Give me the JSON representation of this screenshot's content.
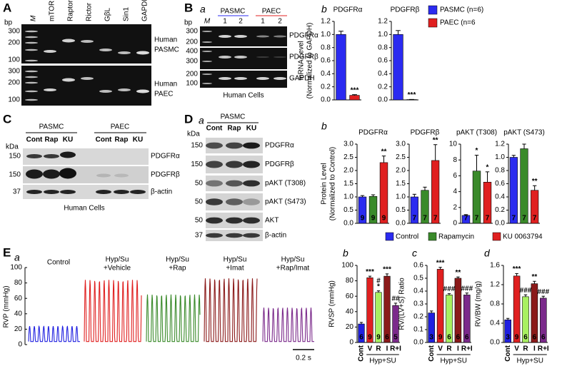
{
  "panels": {
    "A": "A",
    "B": "B",
    "Ba": "a",
    "Bb": "b",
    "C": "C",
    "D": "D",
    "Da": "a",
    "Db": "b",
    "E": "E",
    "Ea": "a",
    "Eb": "b",
    "Ec": "c",
    "Ed": "d"
  },
  "gel_A": {
    "bp": "bp",
    "lanes": [
      "M",
      "mTOR",
      "Raptor",
      "Rictor",
      "GβL",
      "Sin1",
      "GAPDH"
    ],
    "markers_top": [
      300,
      200,
      100
    ],
    "markers_bottom": [
      300,
      200,
      100
    ],
    "rows": [
      [
        "Human",
        "PASMC"
      ],
      [
        "Human",
        "PAEC"
      ]
    ]
  },
  "gel_B": {
    "bp": "bp",
    "ladder": "M",
    "groups": [
      "PASMC",
      "PAEC"
    ],
    "lanes": [
      1,
      2,
      1,
      2
    ],
    "strips": [
      "PDGFRα",
      "PDGFRβ",
      "GAPDH"
    ],
    "markers": [
      [
        300,
        200
      ],
      [
        400,
        300
      ],
      [
        200,
        100
      ]
    ],
    "footer": "Human Cells"
  },
  "blot_C": {
    "kda": "kDa",
    "groups": [
      "PASMC",
      "PAEC"
    ],
    "lanes": [
      [
        "Cont",
        "Rap",
        "KU"
      ],
      [
        "Cont",
        "Rap",
        "KU"
      ]
    ],
    "strips": [
      "PDGFRα",
      "PDGFRβ",
      "β-actin"
    ],
    "markers": [
      150,
      150,
      37
    ],
    "footer": "Human Cells"
  },
  "blot_D": {
    "kda": "kDa",
    "group": "PASMC",
    "lanes": [
      "Cont",
      "Rap",
      "KU"
    ],
    "strips": [
      "PDGFRα",
      "PDGFRβ",
      "pAKT (T308)",
      "pAKT (S473)",
      "AKT",
      "β-actin"
    ],
    "markers": [
      150,
      150,
      50,
      50,
      50,
      37
    ]
  },
  "lane_colors": [
    "#2b2bf0",
    "#3a8a2a",
    "#e02020"
  ],
  "legends": [
    {
      "names": [
        "PASMC (n=6)",
        "PAEC (n=6"
      ],
      "colors": [
        "#2b2bf0",
        "#e02020"
      ]
    },
    {
      "names": [
        "Control",
        "Rapamycin",
        "KU 0063794"
      ],
      "colors": [
        "#2b2bf0",
        "#3a8a2a",
        "#e02020"
      ]
    }
  ],
  "traces": {
    "ylabel": "RVP (mmHg)",
    "ylim": [
      0,
      100
    ],
    "yticks": [
      0,
      20,
      40,
      60,
      80,
      100
    ],
    "labels": [
      [
        "Control"
      ],
      [
        "Hyp/Su",
        "+Vehicle"
      ],
      [
        "Hyp/Su",
        "+Rap"
      ],
      [
        "Hyp/Su",
        "+Imat"
      ],
      [
        "Hyp/Su",
        "+Rap/Imat"
      ]
    ],
    "colors": [
      "#2020e0",
      "#e02020",
      "#3a8a2a",
      "#8b1a1a",
      "#7b2a8b"
    ],
    "scale": "0.2 s"
  },
  "chart_data": [
    {
      "type": "bar",
      "title": "PDGFRα",
      "ylabel": [
        "mRNA Level",
        "(Normalized to GAPDH)"
      ],
      "values": [
        1.0,
        0.07
      ],
      "errors": [
        0.05,
        0.01
      ],
      "colors": [
        "#2b2bf0",
        "#e02020"
      ],
      "significance": [
        null,
        "***"
      ],
      "ylim": [
        0,
        1.2
      ],
      "yticks": [
        {
          "value": 0,
          "label": "0.0"
        },
        {
          "value": 0.2,
          "label": "0.2"
        },
        {
          "value": 0.4,
          "label": "0.4"
        },
        {
          "value": 0.6,
          "label": "0.6"
        },
        {
          "value": 0.8,
          "label": "0.8"
        },
        {
          "value": 1,
          "label": "1.0"
        },
        {
          "value": 1.2,
          "label": "1.2"
        }
      ]
    },
    {
      "type": "bar",
      "title": "PDGFRβ",
      "values": [
        1.0,
        0.005
      ],
      "errors": [
        0.06,
        0.002
      ],
      "colors": [
        "#2b2bf0",
        "#e02020"
      ],
      "significance": [
        null,
        "***"
      ],
      "ylim": [
        0,
        1.2
      ],
      "yticks": [
        {
          "value": 0,
          "label": "0.0"
        },
        {
          "value": 0.2,
          "label": "0.2"
        },
        {
          "value": 0.4,
          "label": "0.4"
        },
        {
          "value": 0.6,
          "label": "0.6"
        },
        {
          "value": 0.8,
          "label": "0.8"
        },
        {
          "value": 1,
          "label": "1.0"
        },
        {
          "value": 1.2,
          "label": "1.2"
        }
      ]
    },
    {
      "type": "bar",
      "title": "PDGFRα",
      "ylabel": [
        "Protein Level",
        "(Normalized to Control)"
      ],
      "values": [
        1.0,
        1.02,
        2.3
      ],
      "errors": [
        0.05,
        0.06,
        0.25
      ],
      "colors": [
        "#2b2bf0",
        "#3a8a2a",
        "#e02020"
      ],
      "n": [
        9,
        9,
        9
      ],
      "significance": [
        null,
        null,
        "**"
      ],
      "ylim": [
        0,
        3
      ],
      "yticks": [
        {
          "value": 0,
          "label": "0.0"
        },
        {
          "value": 0.5,
          "label": "0.5"
        },
        {
          "value": 1,
          "label": "1.0"
        },
        {
          "value": 1.5,
          "label": "1.5"
        },
        {
          "value": 2,
          "label": "2.0"
        },
        {
          "value": 2.5,
          "label": "2.5"
        },
        {
          "value": 3,
          "label": "3.0"
        }
      ]
    },
    {
      "type": "bar",
      "title": "PDGFRβ",
      "values": [
        1.0,
        1.25,
        2.38
      ],
      "errors": [
        0.1,
        0.12,
        0.6
      ],
      "colors": [
        "#2b2bf0",
        "#3a8a2a",
        "#e02020"
      ],
      "n": [
        7,
        7,
        7
      ],
      "significance": [
        null,
        null,
        "**"
      ],
      "ylim": [
        0,
        3
      ],
      "yticks": [
        {
          "value": 0,
          "label": "0.0"
        },
        {
          "value": 0.5,
          "label": "0.5"
        },
        {
          "value": 1,
          "label": "1.0"
        },
        {
          "value": 1.5,
          "label": "1.5"
        },
        {
          "value": 2,
          "label": "2.0"
        },
        {
          "value": 2.5,
          "label": "2.5"
        },
        {
          "value": 3,
          "label": "3.0"
        }
      ]
    },
    {
      "type": "bar",
      "title": "pAKT (T308)",
      "values": [
        1.0,
        6.6,
        5.2
      ],
      "errors": [
        0.1,
        2.0,
        1.3
      ],
      "colors": [
        "#2b2bf0",
        "#3a8a2a",
        "#e02020"
      ],
      "n": [
        7,
        7,
        7
      ],
      "significance": [
        null,
        "*",
        "*"
      ],
      "ylim": [
        0,
        10
      ],
      "yticks": [
        0,
        2,
        4,
        6,
        8,
        10
      ]
    },
    {
      "type": "bar",
      "title": "pAKT (S473)",
      "values": [
        1.0,
        1.13,
        0.5
      ],
      "errors": [
        0.03,
        0.07,
        0.07
      ],
      "colors": [
        "#2b2bf0",
        "#3a8a2a",
        "#e02020"
      ],
      "n": [
        7,
        7,
        7
      ],
      "significance": [
        null,
        null,
        "**"
      ],
      "ylim": [
        0,
        1.2
      ],
      "yticks": [
        {
          "value": 0,
          "label": "0.0"
        },
        {
          "value": 0.2,
          "label": "0.2"
        },
        {
          "value": 0.4,
          "label": "0.4"
        },
        {
          "value": 0.6,
          "label": "0.6"
        },
        {
          "value": 0.8,
          "label": "0.8"
        },
        {
          "value": 1,
          "label": "1.0"
        },
        {
          "value": 1.2,
          "label": "1.2"
        }
      ]
    },
    {
      "type": "bar",
      "ylabel": [
        "RVSP (mmHg)"
      ],
      "categories": [
        "Cont",
        "V",
        "R",
        "I",
        "R+I"
      ],
      "group_label": "Hyp+SU",
      "values": [
        24,
        84,
        65,
        86,
        48
      ],
      "errors": [
        2,
        2,
        2,
        3,
        3
      ],
      "colors": [
        "#2020e0",
        "#e02020",
        "#a8f060",
        "#8b1a1a",
        "#7b2a8b"
      ],
      "n": [
        6,
        9,
        9,
        6,
        5
      ],
      "significance": [
        null,
        [
          "***"
        ],
        [
          "#",
          "*"
        ],
        [
          "***"
        ],
        [
          "##"
        ]
      ],
      "ylim": [
        0,
        100
      ],
      "yticks": [
        0,
        20,
        40,
        60,
        80,
        100
      ]
    },
    {
      "type": "bar",
      "ylabel": [
        "RV/(LV+S) Ratio"
      ],
      "categories": [
        "Cont",
        "V",
        "R",
        "I",
        "R+I"
      ],
      "group_label": "Hyp+SU",
      "values": [
        0.23,
        0.57,
        0.37,
        0.5,
        0.37
      ],
      "errors": [
        0.015,
        0.015,
        0.01,
        0.01,
        0.015
      ],
      "colors": [
        "#2020e0",
        "#e02020",
        "#a8f060",
        "#8b1a1a",
        "#7b2a8b"
      ],
      "n": [
        3,
        9,
        6,
        6,
        6
      ],
      "significance": [
        null,
        [
          "***"
        ],
        [
          "###"
        ],
        [
          "**"
        ],
        [
          "###"
        ]
      ],
      "ylim": [
        0,
        0.6
      ],
      "yticks": [
        {
          "value": 0,
          "label": "0.0"
        },
        {
          "value": 0.1,
          "label": "0.1"
        },
        {
          "value": 0.2,
          "label": "0.2"
        },
        {
          "value": 0.3,
          "label": "0.3"
        },
        {
          "value": 0.4,
          "label": "0.4"
        },
        {
          "value": 0.5,
          "label": "0.5"
        },
        {
          "value": 0.6,
          "label": "0.6"
        }
      ]
    },
    {
      "type": "bar",
      "ylabel": [
        "RV/BW (mg/g)"
      ],
      "categories": [
        "Cont",
        "V",
        "R",
        "I",
        "R+I"
      ],
      "group_label": "Hyp+SU",
      "values": [
        0.47,
        1.38,
        0.95,
        1.22,
        0.92
      ],
      "errors": [
        0.03,
        0.05,
        0.04,
        0.05,
        0.04
      ],
      "colors": [
        "#2020e0",
        "#e02020",
        "#a8f060",
        "#8b1a1a",
        "#7b2a8b"
      ],
      "n": [
        3,
        9,
        6,
        6,
        6
      ],
      "significance": [
        null,
        [
          "***"
        ],
        [
          "###"
        ],
        [
          "**"
        ],
        [
          "###"
        ]
      ],
      "ylim": [
        0,
        1.6
      ],
      "yticks": [
        {
          "value": 0,
          "label": "0.0"
        },
        {
          "value": 0.4,
          "label": "0.4"
        },
        {
          "value": 0.8,
          "label": "0.8"
        },
        {
          "value": 1.2,
          "label": "1.2"
        },
        {
          "value": 1.6,
          "label": "1.6"
        }
      ]
    }
  ]
}
